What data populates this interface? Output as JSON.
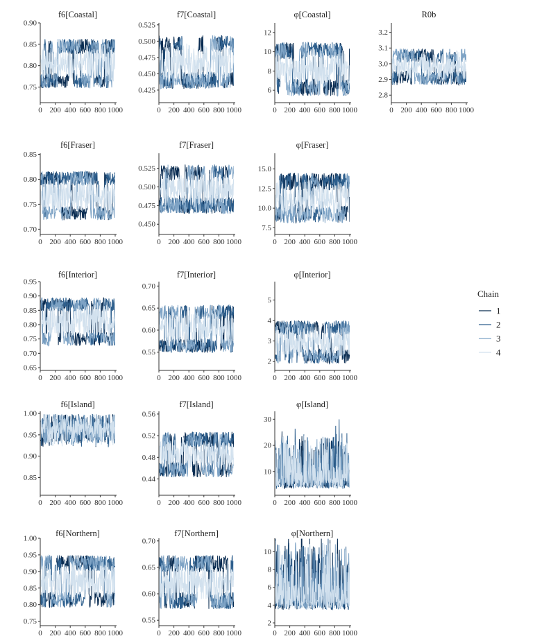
{
  "chart_data": {
    "type": "line",
    "facet_layout": "grid",
    "legend": {
      "title": "Chain",
      "placement": "right",
      "entries": [
        {
          "label": "1",
          "color": "#0b2d52"
        },
        {
          "label": "2",
          "color": "#2e5f8d"
        },
        {
          "label": "3",
          "color": "#7ea3c5"
        },
        {
          "label": "4",
          "color": "#d2e1ee"
        }
      ]
    },
    "x": {
      "range": [
        0,
        1000
      ],
      "ticks": [
        "0",
        "200",
        "400",
        "600",
        "800",
        "1000"
      ]
    },
    "panels": [
      {
        "title": "f6[Coastal]",
        "ylim": [
          0.72,
          0.9
        ],
        "ticks": [
          0.75,
          0.8,
          0.85,
          0.9
        ],
        "tick_labels": [
          "0.75",
          "0.80",
          "0.85",
          "0.90"
        ],
        "mode": "bimodal",
        "center": 0.805,
        "spread": 0.04,
        "noise": 0.018
      },
      {
        "title": "f7[Coastal]",
        "ylim": [
          0.41,
          0.528
        ],
        "ticks": [
          0.425,
          0.45,
          0.475,
          0.5,
          0.525
        ],
        "tick_labels": [
          "0.425",
          "0.450",
          "0.475",
          "0.500",
          "0.525"
        ],
        "mode": "bimodal",
        "center": 0.468,
        "spread": 0.028,
        "noise": 0.013
      },
      {
        "title": "φ[Coastal]",
        "ylim": [
          5.0,
          13.0
        ],
        "ticks": [
          6,
          8,
          10,
          12
        ],
        "tick_labels": [
          "6",
          "8",
          "10",
          "12"
        ],
        "mode": "bimodal",
        "center": 8.2,
        "spread": 1.9,
        "noise": 0.9
      },
      {
        "title": "R0b",
        "ylim": [
          2.77,
          3.26
        ],
        "ticks": [
          2.8,
          2.9,
          3.0,
          3.1,
          3.2
        ],
        "tick_labels": [
          "2.8",
          "2.9",
          "3.0",
          "3.1",
          "3.2"
        ],
        "mode": "bimodal",
        "center": 2.98,
        "spread": 0.07,
        "noise": 0.045
      },
      {
        "title": "f6[Fraser]",
        "ylim": [
          0.695,
          0.852
        ],
        "ticks": [
          0.7,
          0.75,
          0.8,
          0.85
        ],
        "tick_labels": [
          "0.70",
          "0.75",
          "0.80",
          "0.85"
        ],
        "mode": "bimodal",
        "center": 0.767,
        "spread": 0.035,
        "noise": 0.014
      },
      {
        "title": "f7[Fraser]",
        "ylim": [
          0.44,
          0.545
        ],
        "ticks": [
          0.45,
          0.475,
          0.5,
          0.525
        ],
        "tick_labels": [
          "0.450",
          "0.475",
          "0.500",
          "0.525"
        ],
        "mode": "bimodal",
        "center": 0.497,
        "spread": 0.022,
        "noise": 0.011
      },
      {
        "title": "φ[Fraser]",
        "ylim": [
          7.0,
          17.0
        ],
        "ticks": [
          7.5,
          10.0,
          12.5,
          15.0
        ],
        "tick_labels": [
          "7.5",
          "10.0",
          "12.5",
          "15.0"
        ],
        "mode": "bimodal",
        "center": 11.3,
        "spread": 2.1,
        "noise": 1.1
      },
      {
        "title": "f6[Interior]",
        "ylim": [
          0.65,
          0.95
        ],
        "ticks": [
          0.65,
          0.7,
          0.75,
          0.8,
          0.85,
          0.9,
          0.95
        ],
        "tick_labels": [
          "0.65",
          "0.70",
          "0.75",
          "0.80",
          "0.85",
          "0.90",
          "0.95"
        ],
        "mode": "bimodal",
        "center": 0.81,
        "spread": 0.06,
        "noise": 0.024
      },
      {
        "title": "f7[Interior]",
        "ylim": [
          0.515,
          0.71
        ],
        "ticks": [
          0.55,
          0.6,
          0.65,
          0.7
        ],
        "tick_labels": [
          "0.55",
          "0.60",
          "0.65",
          "0.70"
        ],
        "mode": "bimodal",
        "center": 0.603,
        "spread": 0.038,
        "noise": 0.016
      },
      {
        "title": "φ[Interior]",
        "ylim": [
          1.7,
          5.9
        ],
        "ticks": [
          2,
          3,
          4,
          5
        ],
        "tick_labels": [
          "2",
          "3",
          "4",
          "5"
        ],
        "mode": "bimodal",
        "center": 2.95,
        "spread": 0.7,
        "noise": 0.35
      },
      {
        "title": "f6[Island]",
        "ylim": [
          0.815,
          1.005
        ],
        "ticks": [
          0.85,
          0.9,
          0.95,
          1.0
        ],
        "tick_labels": [
          "0.85",
          "0.90",
          "0.95",
          "1.00"
        ],
        "mode": "upper",
        "center": 0.955,
        "spread": 0.04,
        "noise": 0.025
      },
      {
        "title": "f7[Island]",
        "ylim": [
          0.415,
          0.565
        ],
        "ticks": [
          0.44,
          0.48,
          0.52,
          0.56
        ],
        "tick_labels": [
          "0.44",
          "0.48",
          "0.52",
          "0.56"
        ],
        "mode": "bimodal",
        "center": 0.485,
        "spread": 0.028,
        "noise": 0.014
      },
      {
        "title": "φ[Island]",
        "ylim": [
          2.0,
          33.0
        ],
        "ticks": [
          10,
          20,
          30
        ],
        "tick_labels": [
          "10",
          "20",
          "30"
        ],
        "mode": "skew",
        "center": 7.0,
        "spread": 4.0,
        "noise": 3.0
      },
      {
        "title": "f6[Northern]",
        "ylim": [
          0.745,
          1.0
        ],
        "ticks": [
          0.75,
          0.8,
          0.85,
          0.9,
          0.95,
          1.0
        ],
        "tick_labels": [
          "0.75",
          "0.80",
          "0.85",
          "0.90",
          "0.95",
          "1.00"
        ],
        "mode": "bimodal",
        "center": 0.87,
        "spread": 0.055,
        "noise": 0.024
      },
      {
        "title": "f7[Northern]",
        "ylim": [
          0.545,
          0.705
        ],
        "ticks": [
          0.55,
          0.6,
          0.65,
          0.7
        ],
        "tick_labels": [
          "0.55",
          "0.60",
          "0.65",
          "0.70"
        ],
        "mode": "bimodal",
        "center": 0.622,
        "spread": 0.035,
        "noise": 0.016
      },
      {
        "title": "φ[Northern]",
        "ylim": [
          2.0,
          11.5
        ],
        "ticks": [
          2,
          4,
          6,
          8,
          10
        ],
        "tick_labels": [
          "2",
          "4",
          "6",
          "8",
          "10"
        ],
        "mode": "skew",
        "center": 4.8,
        "spread": 1.6,
        "noise": 0.9
      }
    ]
  }
}
